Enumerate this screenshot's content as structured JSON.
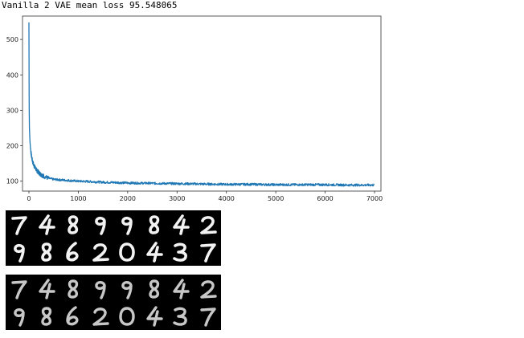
{
  "output": {
    "text": "Vanilla 2 VAE mean loss 95.548065"
  },
  "chart_data": {
    "type": "line",
    "title": "",
    "xlabel": "",
    "ylabel": "",
    "xlim": [
      -130,
      7130
    ],
    "ylim": [
      72,
      566
    ],
    "xticks": [
      0,
      1000,
      2000,
      3000,
      4000,
      5000,
      6000,
      7000
    ],
    "yticks": [
      100,
      200,
      300,
      400,
      500
    ],
    "grid": false,
    "line_color": "#1f77b4",
    "series": [
      {
        "x": [
          0,
          5,
          10,
          20,
          30,
          50,
          75,
          100,
          150,
          200,
          250,
          300,
          400,
          500,
          600,
          800,
          1000,
          1200,
          1500,
          1800,
          2000,
          2500,
          3000,
          3500,
          4000,
          4500,
          5000,
          5500,
          6000,
          6500,
          7000
        ],
        "y": [
          548,
          310,
          250,
          215,
          195,
          172,
          155,
          145,
          132,
          124,
          118,
          114,
          108,
          105,
          104,
          102,
          100,
          99,
          97,
          96,
          95,
          94,
          93,
          92,
          91,
          91,
          90,
          90,
          90,
          89,
          89
        ]
      }
    ]
  },
  "images": {
    "top_grid": {
      "digits": [
        [
          "7",
          "4",
          "8",
          "9",
          "9",
          "8",
          "4",
          "2"
        ],
        [
          "9",
          "8",
          "6",
          "2",
          "0",
          "4",
          "3",
          "7"
        ]
      ]
    },
    "bottom_grid": {
      "digits": [
        [
          "7",
          "4",
          "8",
          "9",
          "9",
          "8",
          "4",
          "2"
        ],
        [
          "9",
          "8",
          "6",
          "2",
          "0",
          "4",
          "3",
          "7"
        ]
      ]
    }
  }
}
